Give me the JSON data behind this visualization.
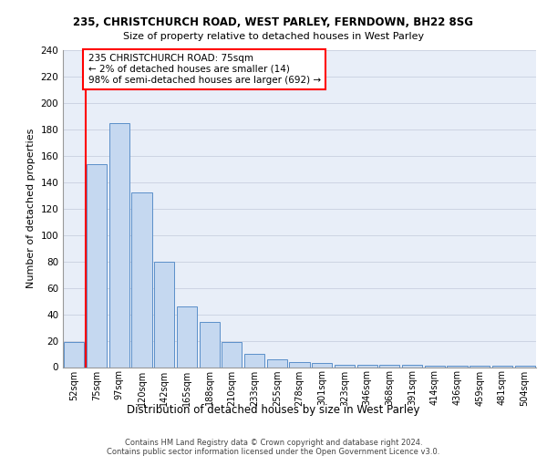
{
  "title1": "235, CHRISTCHURCH ROAD, WEST PARLEY, FERNDOWN, BH22 8SG",
  "title2": "Size of property relative to detached houses in West Parley",
  "xlabel": "Distribution of detached houses by size in West Parley",
  "ylabel": "Number of detached properties",
  "categories": [
    "52sqm",
    "75sqm",
    "97sqm",
    "120sqm",
    "142sqm",
    "165sqm",
    "188sqm",
    "210sqm",
    "233sqm",
    "255sqm",
    "278sqm",
    "301sqm",
    "323sqm",
    "346sqm",
    "368sqm",
    "391sqm",
    "414sqm",
    "436sqm",
    "459sqm",
    "481sqm",
    "504sqm"
  ],
  "values": [
    19,
    154,
    185,
    132,
    80,
    46,
    34,
    19,
    10,
    6,
    4,
    3,
    2,
    2,
    2,
    2,
    1,
    1,
    1,
    1,
    1
  ],
  "bar_color": "#c5d8f0",
  "bar_edge_color": "#5b8fc9",
  "red_line_x": 1,
  "annotation_text": "235 CHRISTCHURCH ROAD: 75sqm\n← 2% of detached houses are smaller (14)\n98% of semi-detached houses are larger (692) →",
  "ylim": [
    0,
    240
  ],
  "yticks": [
    0,
    20,
    40,
    60,
    80,
    100,
    120,
    140,
    160,
    180,
    200,
    220,
    240
  ],
  "footer1": "Contains HM Land Registry data © Crown copyright and database right 2024.",
  "footer2": "Contains public sector information licensed under the Open Government Licence v3.0.",
  "bg_color": "#e8eef8",
  "grid_color": "#c8d0e0"
}
